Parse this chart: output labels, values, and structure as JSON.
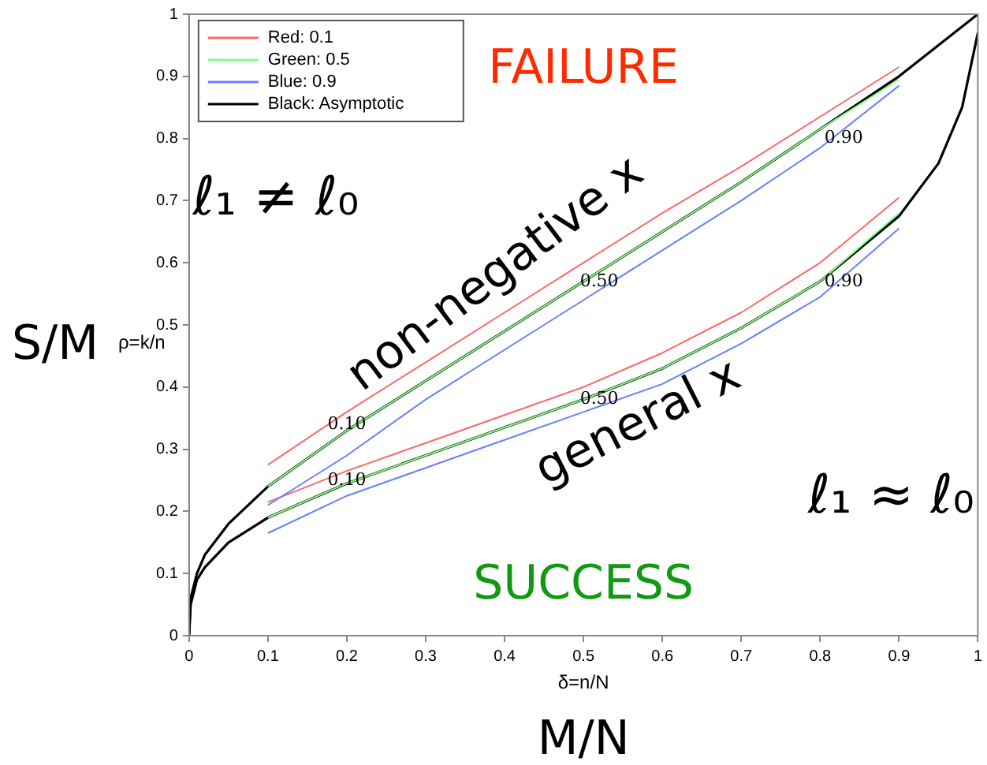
{
  "chart_data": {
    "type": "line",
    "xlabel": "δ=n/N",
    "ylabel": "ρ=k/n",
    "x": [
      0.1,
      0.2,
      0.3,
      0.4,
      0.5,
      0.6,
      0.7,
      0.8,
      0.9
    ],
    "series": [
      {
        "name": "Red: 0.1",
        "color": "#ff6666",
        "values": [
          0.275,
          0.36,
          0.44,
          0.52,
          0.6,
          0.68,
          0.755,
          0.835,
          0.915
        ]
      },
      {
        "name": "Green: 0.5",
        "color": "#80ff80",
        "values": [
          0.24,
          0.33,
          0.41,
          0.49,
          0.57,
          0.65,
          0.73,
          0.815,
          0.895
        ]
      },
      {
        "name": "Blue: 0.9",
        "color": "#6680ff",
        "values": [
          0.21,
          0.29,
          0.38,
          0.46,
          0.54,
          0.62,
          0.7,
          0.785,
          0.885
        ]
      },
      {
        "name": "Black: Asymptotic",
        "color": "#000000",
        "x": [
          0,
          0.002,
          0.01,
          0.02,
          0.05,
          0.1,
          0.2,
          0.3,
          0.4,
          0.5,
          0.6,
          0.7,
          0.8,
          0.9,
          1
        ],
        "values": [
          0,
          0.06,
          0.1,
          0.13,
          0.18,
          0.24,
          0.33,
          0.41,
          0.49,
          0.57,
          0.65,
          0.73,
          0.815,
          0.9,
          1
        ]
      },
      {
        "color": "#ff6666",
        "values": [
          0.215,
          0.265,
          0.31,
          0.355,
          0.4,
          0.455,
          0.52,
          0.6,
          0.705
        ]
      },
      {
        "color": "#80ff80",
        "values": [
          0.19,
          0.245,
          0.29,
          0.335,
          0.38,
          0.43,
          0.495,
          0.57,
          0.68
        ]
      },
      {
        "color": "#6680ff",
        "values": [
          0.165,
          0.225,
          0.27,
          0.315,
          0.36,
          0.405,
          0.47,
          0.545,
          0.655
        ]
      },
      {
        "color": "#000000",
        "x": [
          0,
          0.002,
          0.01,
          0.02,
          0.05,
          0.1,
          0.2,
          0.3,
          0.4,
          0.5,
          0.6,
          0.7,
          0.8,
          0.9,
          0.95,
          0.98,
          1
        ],
        "values": [
          0,
          0.05,
          0.09,
          0.11,
          0.15,
          0.19,
          0.245,
          0.29,
          0.335,
          0.38,
          0.43,
          0.495,
          0.57,
          0.675,
          0.76,
          0.85,
          0.97
        ]
      }
    ],
    "xlim": [
      0,
      1
    ],
    "xticks": [
      0,
      0.1,
      0.2,
      0.3,
      0.4,
      0.5,
      0.6,
      0.7,
      0.8,
      0.9,
      1
    ],
    "ylim": [
      0,
      1
    ],
    "yticks": [
      0,
      0.1,
      0.2,
      0.3,
      0.4,
      0.5,
      0.6,
      0.7,
      0.8,
      0.9,
      1
    ],
    "grid": false,
    "legend": "top left",
    "marker": "none",
    "line_style": "solid",
    "annotations": [
      "FAILURE",
      "SUCCESS",
      "ℓ₁ ≠ ℓ₀",
      "ℓ₁ ≈ ℓ₀",
      "non-negative x",
      "general x",
      "S/M",
      "M/N",
      {
        "text": "0.10",
        "x": 0.2,
        "y": 0.34
      },
      {
        "text": "0.50",
        "x": 0.52,
        "y": 0.57
      },
      {
        "text": "0.90",
        "x": 0.83,
        "y": 0.8
      },
      {
        "text": "0.10",
        "x": 0.2,
        "y": 0.25
      },
      {
        "text": "0.50",
        "x": 0.52,
        "y": 0.38
      },
      {
        "text": "0.90",
        "x": 0.83,
        "y": 0.57
      }
    ]
  }
}
